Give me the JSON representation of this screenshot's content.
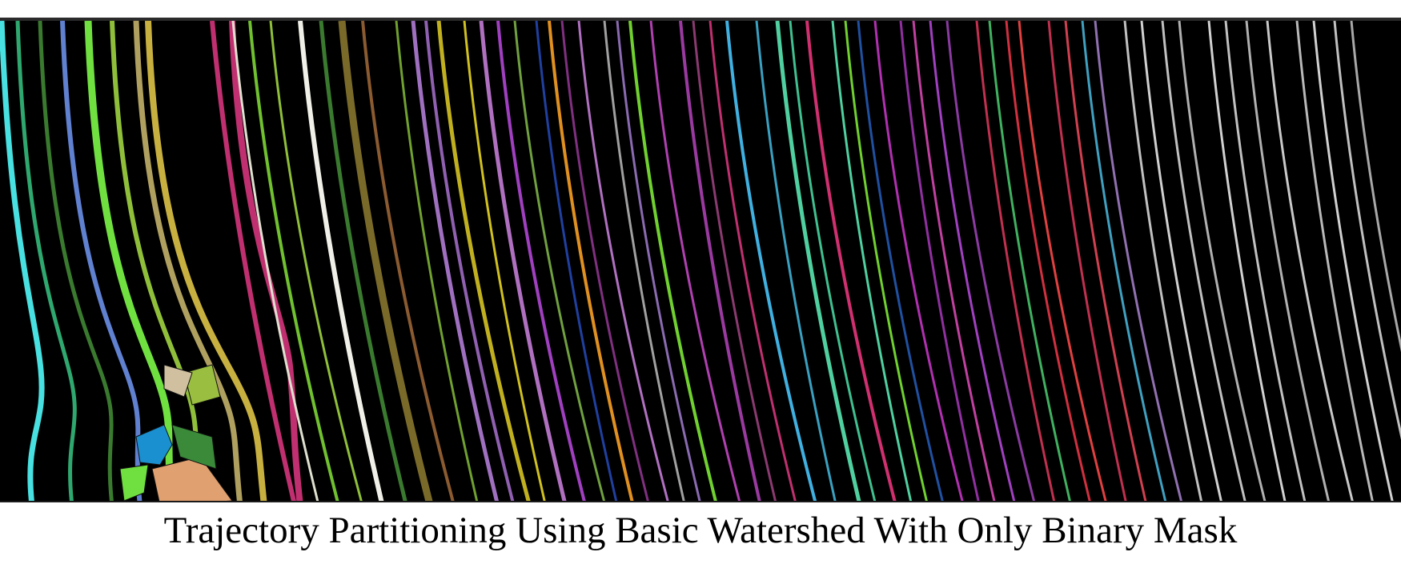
{
  "caption": "Trajectory Partitioning Using Basic Watershed With Only Binary Mask",
  "image": {
    "description_colors": {
      "background": "#000000",
      "palette": [
        "#48e0e0",
        "#2fa86f",
        "#3a7a2f",
        "#8fbf3a",
        "#b0a060",
        "#c03070",
        "#e8e8e0",
        "#7a6a2a",
        "#c0b020",
        "#b070c0",
        "#3050a0",
        "#e09020",
        "#a040c0",
        "#40b0e0",
        "#50d0a0",
        "#d03050",
        "#e04040",
        "#c0c0c0",
        "#f0f0f0",
        "#70d030",
        "#8070e0",
        "#d0c0a0",
        "#e0a070"
      ]
    }
  }
}
